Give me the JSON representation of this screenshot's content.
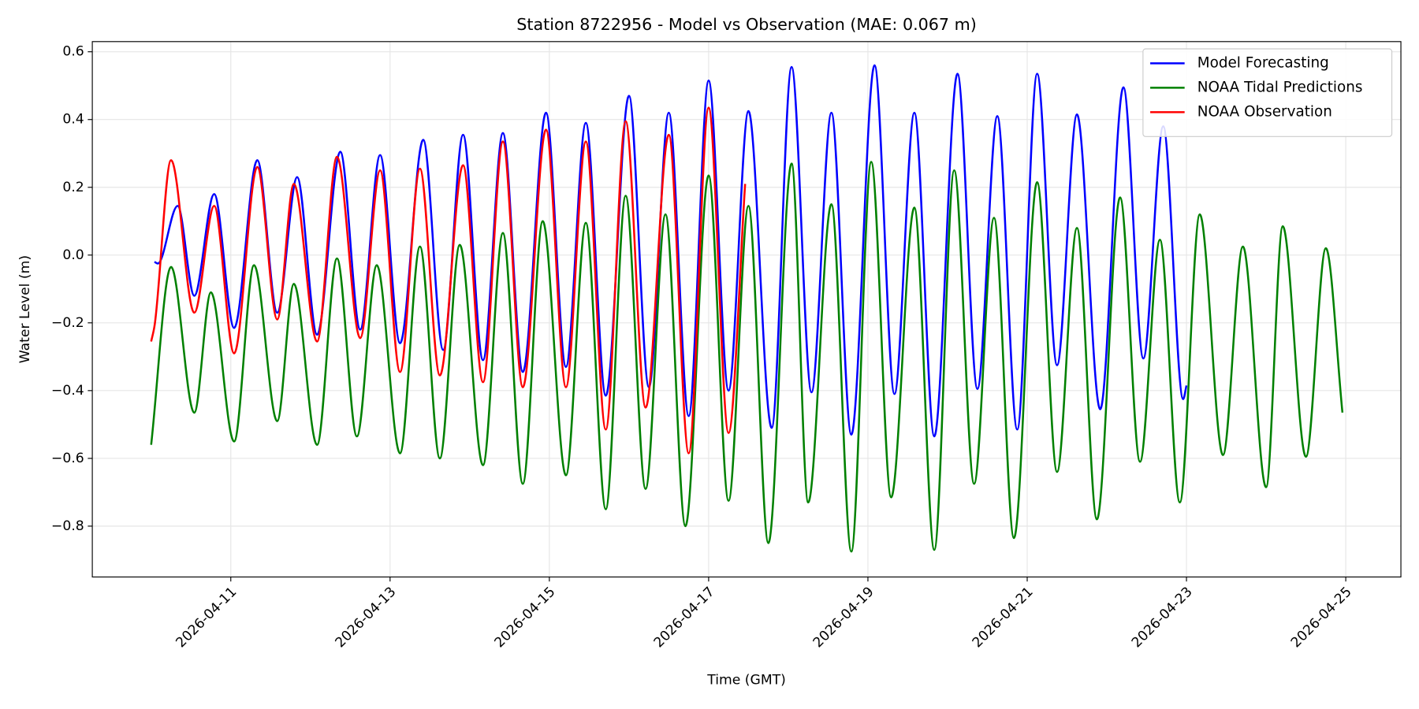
{
  "chart_data": {
    "type": "line",
    "title": "Station 8722956 - Model vs Observation (MAE: 0.067 m)",
    "x_label": "Time (GMT)",
    "y_label": "Water Level (m)",
    "xlim": [
      "2026-04-09 06:16",
      "2026-04-25 16:37"
    ],
    "xticks": [
      "2026-04-11",
      "2026-04-13",
      "2026-04-15",
      "2026-04-17",
      "2026-04-19",
      "2026-04-21",
      "2026-04-23",
      "2026-04-25"
    ],
    "ylim": [
      -0.95,
      0.63
    ],
    "yticks": [
      {
        "value": -0.8,
        "label": "−0.8"
      },
      {
        "value": -0.6,
        "label": "−0.6"
      },
      {
        "value": -0.4,
        "label": "−0.4"
      },
      {
        "value": -0.2,
        "label": "−0.2"
      },
      {
        "value": 0,
        "label": "0.0"
      },
      0.2,
      0.4,
      0.6
    ],
    "grid": true,
    "legend": "upper right",
    "series": [
      {
        "name": "Model Forecasting",
        "color": "#0000ff",
        "x": [
          "2026-04-10 01:00",
          "2026-04-10 02:00",
          "2026-04-10 08:00",
          "2026-04-10 13:00",
          "2026-04-10 19:00",
          "2026-04-11 01:00",
          "2026-04-11 08:00",
          "2026-04-11 14:00",
          "2026-04-11 20:00",
          "2026-04-12 02:00",
          "2026-04-12 09:00",
          "2026-04-12 15:00",
          "2026-04-12 21:00",
          "2026-04-13 03:00",
          "2026-04-13 10:00",
          "2026-04-13 16:00",
          "2026-04-13 22:00",
          "2026-04-14 04:00",
          "2026-04-14 10:00",
          "2026-04-14 16:00",
          "2026-04-14 23:00",
          "2026-04-15 05:00",
          "2026-04-15 11:00",
          "2026-04-15 17:00",
          "2026-04-16 00:00",
          "2026-04-16 06:00",
          "2026-04-16 12:00",
          "2026-04-16 18:00",
          "2026-04-17 00:00",
          "2026-04-17 06:00",
          "2026-04-17 12:00",
          "2026-04-17 19:00",
          "2026-04-18 01:00",
          "2026-04-18 07:00",
          "2026-04-18 13:00",
          "2026-04-18 19:00",
          "2026-04-19 02:00",
          "2026-04-19 08:00",
          "2026-04-19 14:00",
          "2026-04-19 20:00",
          "2026-04-20 03:00",
          "2026-04-20 09:00",
          "2026-04-20 15:00",
          "2026-04-20 21:00",
          "2026-04-21 03:00",
          "2026-04-21 09:00",
          "2026-04-21 15:00",
          "2026-04-21 22:00",
          "2026-04-22 05:00",
          "2026-04-22 11:00",
          "2026-04-22 17:00",
          "2026-04-22 23:00",
          "2026-04-23 00:00"
        ],
        "values": [
          -0.02,
          -0.025,
          0.145,
          -0.12,
          0.18,
          -0.215,
          0.28,
          -0.17,
          0.23,
          -0.235,
          0.305,
          -0.22,
          0.295,
          -0.26,
          0.34,
          -0.28,
          0.355,
          -0.31,
          0.36,
          -0.345,
          0.42,
          -0.33,
          0.39,
          -0.415,
          0.47,
          -0.39,
          0.42,
          -0.475,
          0.515,
          -0.4,
          0.425,
          -0.51,
          0.555,
          -0.405,
          0.42,
          -0.53,
          0.56,
          -0.41,
          0.42,
          -0.535,
          0.535,
          -0.395,
          0.41,
          -0.515,
          0.535,
          -0.325,
          0.415,
          -0.455,
          0.495,
          -0.305,
          0.38,
          -0.425,
          -0.385
        ]
      },
      {
        "name": "NOAA Tidal Predictions",
        "color": "#008000",
        "x": [
          "2026-04-10 00:00",
          "2026-04-10 06:00",
          "2026-04-10 13:00",
          "2026-04-10 18:00",
          "2026-04-11 01:00",
          "2026-04-11 07:00",
          "2026-04-11 14:00",
          "2026-04-11 19:00",
          "2026-04-12 02:00",
          "2026-04-12 08:00",
          "2026-04-12 14:00",
          "2026-04-12 20:00",
          "2026-04-13 03:00",
          "2026-04-13 09:00",
          "2026-04-13 15:00",
          "2026-04-13 21:00",
          "2026-04-14 04:00",
          "2026-04-14 10:00",
          "2026-04-14 16:00",
          "2026-04-14 22:00",
          "2026-04-15 05:00",
          "2026-04-15 11:00",
          "2026-04-15 17:00",
          "2026-04-15 23:00",
          "2026-04-16 05:00",
          "2026-04-16 11:00",
          "2026-04-16 17:00",
          "2026-04-17 00:00",
          "2026-04-17 06:00",
          "2026-04-17 12:00",
          "2026-04-17 18:00",
          "2026-04-18 01:00",
          "2026-04-18 06:00",
          "2026-04-18 13:00",
          "2026-04-18 19:00",
          "2026-04-19 01:00",
          "2026-04-19 07:00",
          "2026-04-19 14:00",
          "2026-04-19 20:00",
          "2026-04-20 02:00",
          "2026-04-20 08:00",
          "2026-04-20 14:00",
          "2026-04-20 20:00",
          "2026-04-21 03:00",
          "2026-04-21 09:00",
          "2026-04-21 15:00",
          "2026-04-21 21:00",
          "2026-04-22 04:00",
          "2026-04-22 10:00",
          "2026-04-22 16:00",
          "2026-04-22 22:00",
          "2026-04-23 04:00",
          "2026-04-23 11:00",
          "2026-04-23 17:00",
          "2026-04-24 00:00",
          "2026-04-24 05:00",
          "2026-04-24 12:00",
          "2026-04-24 18:00",
          "2026-04-24 23:00"
        ],
        "values": [
          -0.56,
          -0.035,
          -0.465,
          -0.11,
          -0.55,
          -0.03,
          -0.49,
          -0.085,
          -0.56,
          -0.01,
          -0.535,
          -0.03,
          -0.585,
          0.025,
          -0.6,
          0.03,
          -0.62,
          0.065,
          -0.675,
          0.1,
          -0.65,
          0.095,
          -0.75,
          0.175,
          -0.69,
          0.12,
          -0.8,
          0.235,
          -0.725,
          0.145,
          -0.85,
          0.27,
          -0.73,
          0.15,
          -0.875,
          0.275,
          -0.715,
          0.14,
          -0.87,
          0.25,
          -0.675,
          0.11,
          -0.835,
          0.215,
          -0.64,
          0.08,
          -0.78,
          0.17,
          -0.61,
          0.045,
          -0.73,
          0.12,
          -0.59,
          0.025,
          -0.685,
          0.085,
          -0.595,
          0.02,
          -0.465
        ]
      },
      {
        "name": "NOAA Observation",
        "color": "#ff0000",
        "x": [
          "2026-04-10 00:00",
          "2026-04-10 01:00",
          "2026-04-10 06:00",
          "2026-04-10 13:00",
          "2026-04-10 19:00",
          "2026-04-11 01:00",
          "2026-04-11 08:00",
          "2026-04-11 14:00",
          "2026-04-11 19:00",
          "2026-04-12 02:00",
          "2026-04-12 08:00",
          "2026-04-12 15:00",
          "2026-04-12 21:00",
          "2026-04-13 03:00",
          "2026-04-13 09:00",
          "2026-04-13 15:00",
          "2026-04-13 22:00",
          "2026-04-14 04:00",
          "2026-04-14 10:00",
          "2026-04-14 16:00",
          "2026-04-14 23:00",
          "2026-04-15 05:00",
          "2026-04-15 11:00",
          "2026-04-15 17:00",
          "2026-04-15 23:00",
          "2026-04-16 05:00",
          "2026-04-16 12:00",
          "2026-04-16 18:00",
          "2026-04-17 00:00",
          "2026-04-17 06:00",
          "2026-04-17 11:00"
        ],
        "values": [
          -0.255,
          -0.21,
          0.28,
          -0.17,
          0.145,
          -0.29,
          0.26,
          -0.19,
          0.21,
          -0.255,
          0.29,
          -0.245,
          0.25,
          -0.345,
          0.255,
          -0.355,
          0.265,
          -0.375,
          0.335,
          -0.39,
          0.37,
          -0.39,
          0.335,
          -0.515,
          0.395,
          -0.45,
          0.355,
          -0.585,
          0.435,
          -0.525,
          0.21
        ]
      }
    ]
  }
}
